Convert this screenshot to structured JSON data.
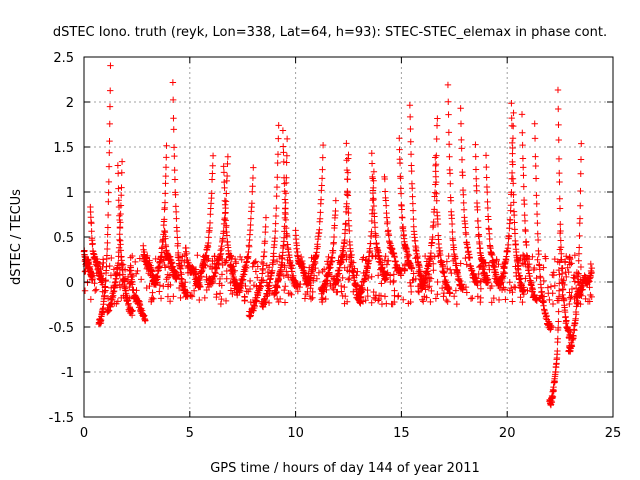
{
  "chart_data": {
    "type": "scatter",
    "title": "dSTEC Iono. truth (reyk, Lon=338, Lat=64, h=93): STEC-STEC_elemax in phase cont.",
    "xlabel": "GPS time / hours of day 144 of year 2011",
    "ylabel": "dSTEC  / TECUs",
    "xlim": [
      0,
      25
    ],
    "ylim": [
      -1.5,
      2.5
    ],
    "xticks": [
      0,
      5,
      10,
      15,
      20,
      25
    ],
    "yticks": [
      -1.5,
      -1,
      -0.5,
      0,
      0.5,
      1,
      1.5,
      2,
      2.5
    ],
    "xtick_labels": [
      "0",
      "5",
      "10",
      "15",
      "20",
      "25"
    ],
    "ytick_labels": [
      "-1.5",
      "-1",
      "-0.5",
      "0",
      "0.5",
      "1",
      "1.5",
      "2",
      "2.5"
    ],
    "grid": true,
    "marker": "+",
    "color": "#ff0000",
    "data_x_range": [
      0,
      24
    ],
    "arcs": [
      {
        "t0": 0.0,
        "t1": 0.4,
        "peak": 0.35,
        "base": 0.05
      },
      {
        "t0": 0.3,
        "t1": 0.9,
        "peak": 0.85,
        "base": 0.0
      },
      {
        "t0": 0.7,
        "t1": 1.25,
        "peak": 2.37,
        "base": -0.45
      },
      {
        "t0": 1.1,
        "t1": 1.8,
        "peak": 1.3,
        "base": -0.3
      },
      {
        "t0": 1.6,
        "t1": 2.3,
        "peak": 1.3,
        "base": -0.35
      },
      {
        "t0": 2.2,
        "t1": 2.9,
        "peak": 0.2,
        "base": -0.4
      },
      {
        "t0": 2.8,
        "t1": 3.4,
        "peak": 0.4,
        "base": 0.0
      },
      {
        "t0": 3.3,
        "t1": 3.9,
        "peak": 1.5,
        "base": 0.0
      },
      {
        "t0": 3.8,
        "t1": 4.4,
        "peak": 0.6,
        "base": 0.05
      },
      {
        "t0": 4.2,
        "t1": 4.9,
        "peak": 2.18,
        "base": -0.15
      },
      {
        "t0": 4.8,
        "t1": 5.5,
        "peak": 0.4,
        "base": -0.05
      },
      {
        "t0": 5.3,
        "t1": 6.1,
        "peak": 1.4,
        "base": 0.0
      },
      {
        "t0": 5.9,
        "t1": 6.8,
        "peak": 1.4,
        "base": 0.0
      },
      {
        "t0": 6.6,
        "t1": 7.3,
        "peak": 1.3,
        "base": -0.05
      },
      {
        "t0": 7.2,
        "t1": 8.0,
        "peak": 1.3,
        "base": -0.1
      },
      {
        "t0": 7.8,
        "t1": 8.6,
        "peak": 0.7,
        "base": -0.35
      },
      {
        "t0": 8.4,
        "t1": 9.2,
        "peak": 1.73,
        "base": -0.25
      },
      {
        "t0": 9.0,
        "t1": 9.6,
        "peak": 1.55,
        "base": -0.1
      },
      {
        "t0": 9.4,
        "t1": 10.1,
        "peak": 1.67,
        "base": -0.05
      },
      {
        "t0": 10.0,
        "t1": 10.6,
        "peak": 0.55,
        "base": 0.0
      },
      {
        "t0": 10.5,
        "t1": 11.3,
        "peak": 1.5,
        "base": 0.0
      },
      {
        "t0": 11.2,
        "t1": 11.9,
        "peak": 0.9,
        "base": -0.1
      },
      {
        "t0": 11.8,
        "t1": 12.5,
        "peak": 1.45,
        "base": 0.0
      },
      {
        "t0": 12.4,
        "t1": 13.1,
        "peak": 1.5,
        "base": -0.2
      },
      {
        "t0": 13.0,
        "t1": 13.7,
        "peak": 1.25,
        "base": -0.1
      },
      {
        "t0": 13.6,
        "t1": 14.3,
        "peak": 1.4,
        "base": 0.05
      },
      {
        "t0": 14.2,
        "t1": 15.0,
        "peak": 1.2,
        "base": 0.1
      },
      {
        "t0": 14.9,
        "t1": 15.5,
        "peak": 1.6,
        "base": 0.15
      },
      {
        "t0": 15.4,
        "t1": 16.1,
        "peak": 1.98,
        "base": 0.0
      },
      {
        "t0": 15.9,
        "t1": 16.7,
        "peak": 1.85,
        "base": -0.05
      },
      {
        "t0": 16.6,
        "t1": 17.3,
        "peak": 1.4,
        "base": -0.1
      },
      {
        "t0": 17.2,
        "t1": 17.9,
        "peak": 2.15,
        "base": -0.05
      },
      {
        "t0": 17.8,
        "t1": 18.6,
        "peak": 1.9,
        "base": 0.0
      },
      {
        "t0": 18.5,
        "t1": 19.1,
        "peak": 1.5,
        "base": 0.0
      },
      {
        "t0": 19.0,
        "t1": 19.7,
        "peak": 1.4,
        "base": -0.05
      },
      {
        "t0": 19.6,
        "t1": 20.3,
        "peak": 1.85,
        "base": 0.0
      },
      {
        "t0": 20.2,
        "t1": 20.8,
        "peak": 2.02,
        "base": -0.1
      },
      {
        "t0": 20.7,
        "t1": 21.4,
        "peak": 1.85,
        "base": -0.2
      },
      {
        "t0": 21.3,
        "t1": 22.1,
        "peak": 1.75,
        "base": -0.5
      },
      {
        "t0": 22.0,
        "t1": 22.5,
        "peak": 0.5,
        "base": -1.35
      },
      {
        "t0": 22.4,
        "t1": 23.0,
        "peak": 2.17,
        "base": -0.6
      },
      {
        "t0": 22.9,
        "t1": 23.5,
        "peak": 1.5,
        "base": -0.75
      },
      {
        "t0": 23.3,
        "t1": 24.0,
        "peak": 0.15,
        "base": -0.15
      }
    ]
  }
}
